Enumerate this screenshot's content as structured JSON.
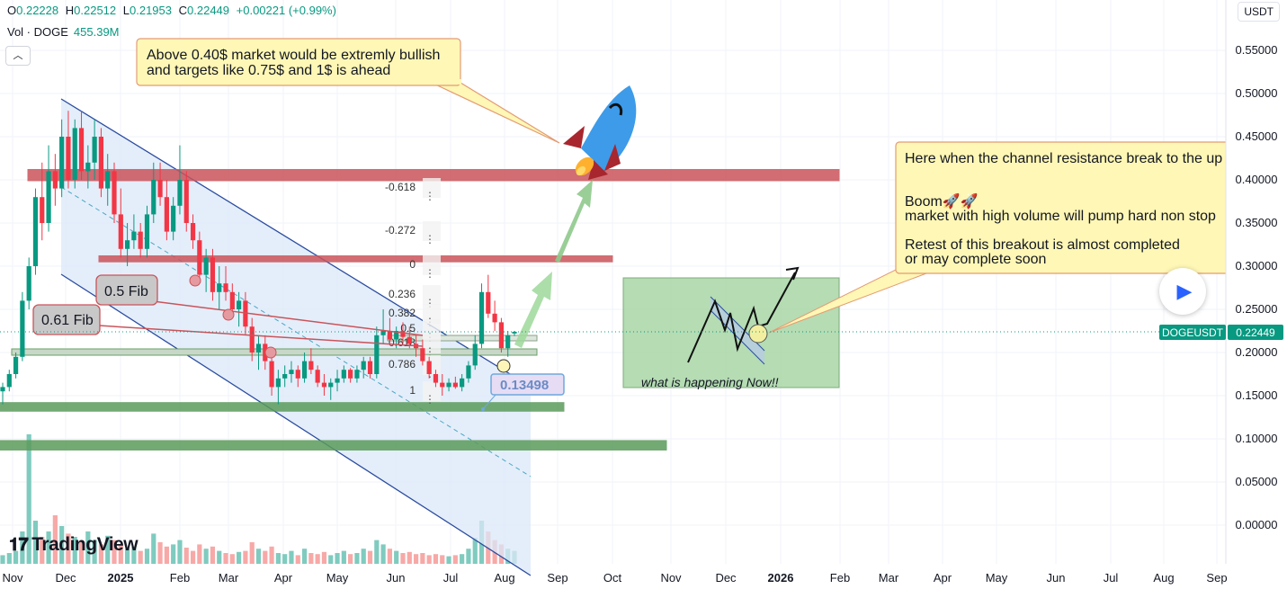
{
  "header": {
    "open_label": "O",
    "open": "0.22228",
    "high_label": "H",
    "high": "0.22512",
    "low_label": "L",
    "low": "0.21953",
    "close_label": "C",
    "close": "0.22449",
    "change": "+0.00221 (+0.99%)",
    "vol_label": "Vol · DOGE",
    "vol_value": "455.39M",
    "collapse_icon": "chevron-up-icon"
  },
  "currency": "USDT",
  "logo": {
    "text": "TradingView",
    "icon": "tradingview-logo-icon"
  },
  "play_button_icon": "play-icon",
  "colors": {
    "up": "#089981",
    "down": "#f23645",
    "accent": "#2962ff",
    "red_zone": "#c9545b",
    "green_zone": "#5b9b5b",
    "channel_fill": "#dbe8f8"
  },
  "annotations": {
    "callout_top": [
      "Above 0.40$ market would be extremly bullish",
      "and targets like 0.75$ and 1$ is ahead"
    ],
    "callout_right": [
      "Here when the channel resistance break to the up",
      "",
      "Boom🚀🚀",
      "market with high volume will pump hard non stop",
      "",
      "Retest of this breakout is almost completed",
      " or may complete soon"
    ],
    "box_label": "what is happening Now!!",
    "fib_label_1": "0.5 Fib",
    "fib_label_2": "0.61 Fib",
    "price_tag": "0.13498",
    "fib_levels": [
      "-0.618",
      "-0.272",
      "0",
      "0.236",
      "0.382",
      "0.5",
      "0.618",
      "0.786",
      "1"
    ]
  },
  "chart_data": {
    "type": "candlestick",
    "symbol": "DOGEUSDT",
    "last_price": "0.22449",
    "y_axis": {
      "ticks": [
        "0.55000",
        "0.50000",
        "0.45000",
        "0.40000",
        "0.35000",
        "0.30000",
        "0.25000",
        "0.20000",
        "0.15000",
        "0.10000",
        "0.05000",
        "0.00000"
      ],
      "ylim": [
        -0.03,
        0.58
      ]
    },
    "x_axis": {
      "ticks": [
        "Nov",
        "Dec",
        "2025",
        "Feb",
        "Mar",
        "Apr",
        "May",
        "Jun",
        "Jul",
        "Aug",
        "Sep",
        "Oct",
        "Nov",
        "Dec",
        "2026",
        "Feb",
        "Mar",
        "Apr",
        "May",
        "Jun",
        "Jul",
        "Aug",
        "Sep"
      ]
    },
    "zones": [
      {
        "name": "resistance-zone-040",
        "range": [
          0.399,
          0.412
        ]
      },
      {
        "name": "resistance-zone-030",
        "range": [
          0.305,
          0.312
        ]
      },
      {
        "name": "support-zone-014",
        "range": [
          0.132,
          0.142
        ]
      },
      {
        "name": "support-zone-009",
        "range": [
          0.087,
          0.098
        ]
      }
    ],
    "candles": [
      [
        0.155,
        0.165,
        0.14,
        0.16
      ],
      [
        0.16,
        0.18,
        0.155,
        0.175
      ],
      [
        0.175,
        0.2,
        0.17,
        0.195
      ],
      [
        0.195,
        0.27,
        0.19,
        0.26
      ],
      [
        0.26,
        0.31,
        0.25,
        0.3
      ],
      [
        0.3,
        0.39,
        0.29,
        0.38
      ],
      [
        0.38,
        0.42,
        0.33,
        0.35
      ],
      [
        0.35,
        0.44,
        0.34,
        0.41
      ],
      [
        0.41,
        0.43,
        0.37,
        0.39
      ],
      [
        0.39,
        0.47,
        0.38,
        0.45
      ],
      [
        0.45,
        0.48,
        0.39,
        0.4
      ],
      [
        0.4,
        0.47,
        0.39,
        0.46
      ],
      [
        0.46,
        0.48,
        0.4,
        0.41
      ],
      [
        0.41,
        0.44,
        0.39,
        0.42
      ],
      [
        0.42,
        0.47,
        0.4,
        0.45
      ],
      [
        0.45,
        0.46,
        0.38,
        0.39
      ],
      [
        0.39,
        0.43,
        0.37,
        0.41
      ],
      [
        0.41,
        0.42,
        0.35,
        0.36
      ],
      [
        0.36,
        0.39,
        0.31,
        0.32
      ],
      [
        0.32,
        0.35,
        0.3,
        0.33
      ],
      [
        0.33,
        0.36,
        0.32,
        0.34
      ],
      [
        0.34,
        0.35,
        0.31,
        0.32
      ],
      [
        0.32,
        0.37,
        0.31,
        0.36
      ],
      [
        0.36,
        0.42,
        0.35,
        0.4
      ],
      [
        0.4,
        0.42,
        0.37,
        0.38
      ],
      [
        0.38,
        0.4,
        0.33,
        0.34
      ],
      [
        0.34,
        0.38,
        0.33,
        0.37
      ],
      [
        0.37,
        0.44,
        0.36,
        0.4
      ],
      [
        0.4,
        0.41,
        0.34,
        0.35
      ],
      [
        0.35,
        0.36,
        0.32,
        0.33
      ],
      [
        0.33,
        0.34,
        0.28,
        0.29
      ],
      [
        0.29,
        0.32,
        0.27,
        0.31
      ],
      [
        0.31,
        0.32,
        0.26,
        0.27
      ],
      [
        0.27,
        0.3,
        0.25,
        0.28
      ],
      [
        0.28,
        0.3,
        0.26,
        0.27
      ],
      [
        0.27,
        0.28,
        0.24,
        0.25
      ],
      [
        0.25,
        0.27,
        0.23,
        0.26
      ],
      [
        0.26,
        0.27,
        0.22,
        0.23
      ],
      [
        0.23,
        0.24,
        0.19,
        0.2
      ],
      [
        0.2,
        0.22,
        0.18,
        0.21
      ],
      [
        0.21,
        0.22,
        0.18,
        0.19
      ],
      [
        0.19,
        0.2,
        0.15,
        0.16
      ],
      [
        0.16,
        0.18,
        0.14,
        0.17
      ],
      [
        0.17,
        0.185,
        0.16,
        0.175
      ],
      [
        0.175,
        0.19,
        0.165,
        0.18
      ],
      [
        0.18,
        0.185,
        0.16,
        0.17
      ],
      [
        0.17,
        0.2,
        0.165,
        0.19
      ],
      [
        0.19,
        0.205,
        0.175,
        0.18
      ],
      [
        0.18,
        0.185,
        0.16,
        0.165
      ],
      [
        0.165,
        0.175,
        0.15,
        0.16
      ],
      [
        0.16,
        0.17,
        0.145,
        0.165
      ],
      [
        0.165,
        0.18,
        0.155,
        0.17
      ],
      [
        0.17,
        0.185,
        0.165,
        0.18
      ],
      [
        0.18,
        0.182,
        0.165,
        0.17
      ],
      [
        0.17,
        0.185,
        0.165,
        0.18
      ],
      [
        0.18,
        0.195,
        0.17,
        0.19
      ],
      [
        0.19,
        0.195,
        0.17,
        0.175
      ],
      [
        0.175,
        0.23,
        0.17,
        0.22
      ],
      [
        0.22,
        0.25,
        0.21,
        0.225
      ],
      [
        0.225,
        0.24,
        0.21,
        0.215
      ],
      [
        0.215,
        0.23,
        0.205,
        0.225
      ],
      [
        0.225,
        0.235,
        0.21,
        0.218
      ],
      [
        0.218,
        0.23,
        0.205,
        0.21
      ],
      [
        0.21,
        0.22,
        0.195,
        0.205
      ],
      [
        0.205,
        0.215,
        0.185,
        0.19
      ],
      [
        0.19,
        0.195,
        0.17,
        0.175
      ],
      [
        0.175,
        0.18,
        0.16,
        0.165
      ],
      [
        0.165,
        0.175,
        0.15,
        0.16
      ],
      [
        0.16,
        0.17,
        0.155,
        0.165
      ],
      [
        0.165,
        0.172,
        0.158,
        0.16
      ],
      [
        0.16,
        0.175,
        0.155,
        0.17
      ],
      [
        0.17,
        0.19,
        0.165,
        0.185
      ],
      [
        0.185,
        0.22,
        0.18,
        0.21
      ],
      [
        0.21,
        0.28,
        0.205,
        0.27
      ],
      [
        0.27,
        0.29,
        0.24,
        0.245
      ],
      [
        0.245,
        0.26,
        0.225,
        0.235
      ],
      [
        0.235,
        0.24,
        0.2,
        0.205
      ],
      [
        0.205,
        0.225,
        0.195,
        0.22
      ],
      [
        0.222,
        0.225,
        0.219,
        0.224
      ]
    ],
    "volume": [
      8,
      10,
      12,
      30,
      120,
      40,
      25,
      30,
      45,
      35,
      28,
      25,
      20,
      30,
      22,
      18,
      26,
      22,
      18,
      14,
      16,
      12,
      14,
      28,
      20,
      16,
      18,
      22,
      15,
      12,
      18,
      14,
      16,
      12,
      10,
      9,
      11,
      12,
      20,
      14,
      12,
      16,
      10,
      9,
      12,
      8,
      14,
      10,
      9,
      11,
      8,
      10,
      12,
      9,
      10,
      14,
      12,
      22,
      18,
      14,
      12,
      10,
      11,
      9,
      10,
      8,
      9,
      8,
      7,
      8,
      9,
      14,
      24,
      40,
      30,
      22,
      18,
      14,
      12
    ]
  }
}
